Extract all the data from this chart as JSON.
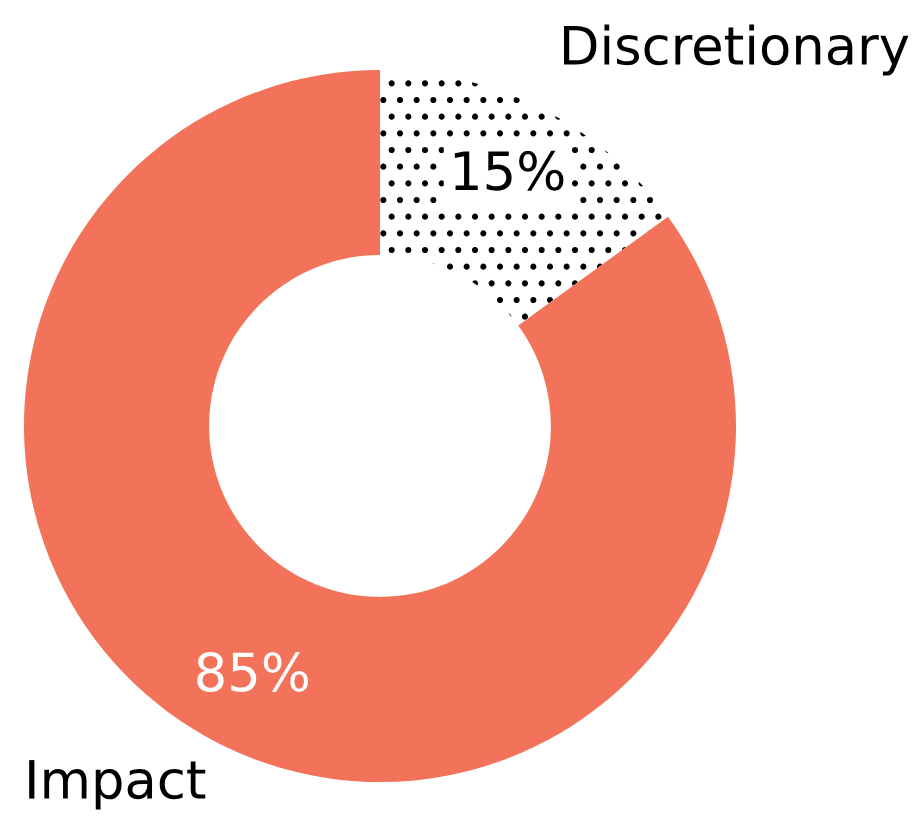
{
  "chart_data": {
    "type": "donut",
    "categories": [
      "Discretionary",
      "Impact"
    ],
    "values": [
      15,
      85
    ],
    "value_labels": [
      "15%",
      "85%"
    ],
    "colors": [
      "#ffffff",
      "#f27359"
    ]
  }
}
